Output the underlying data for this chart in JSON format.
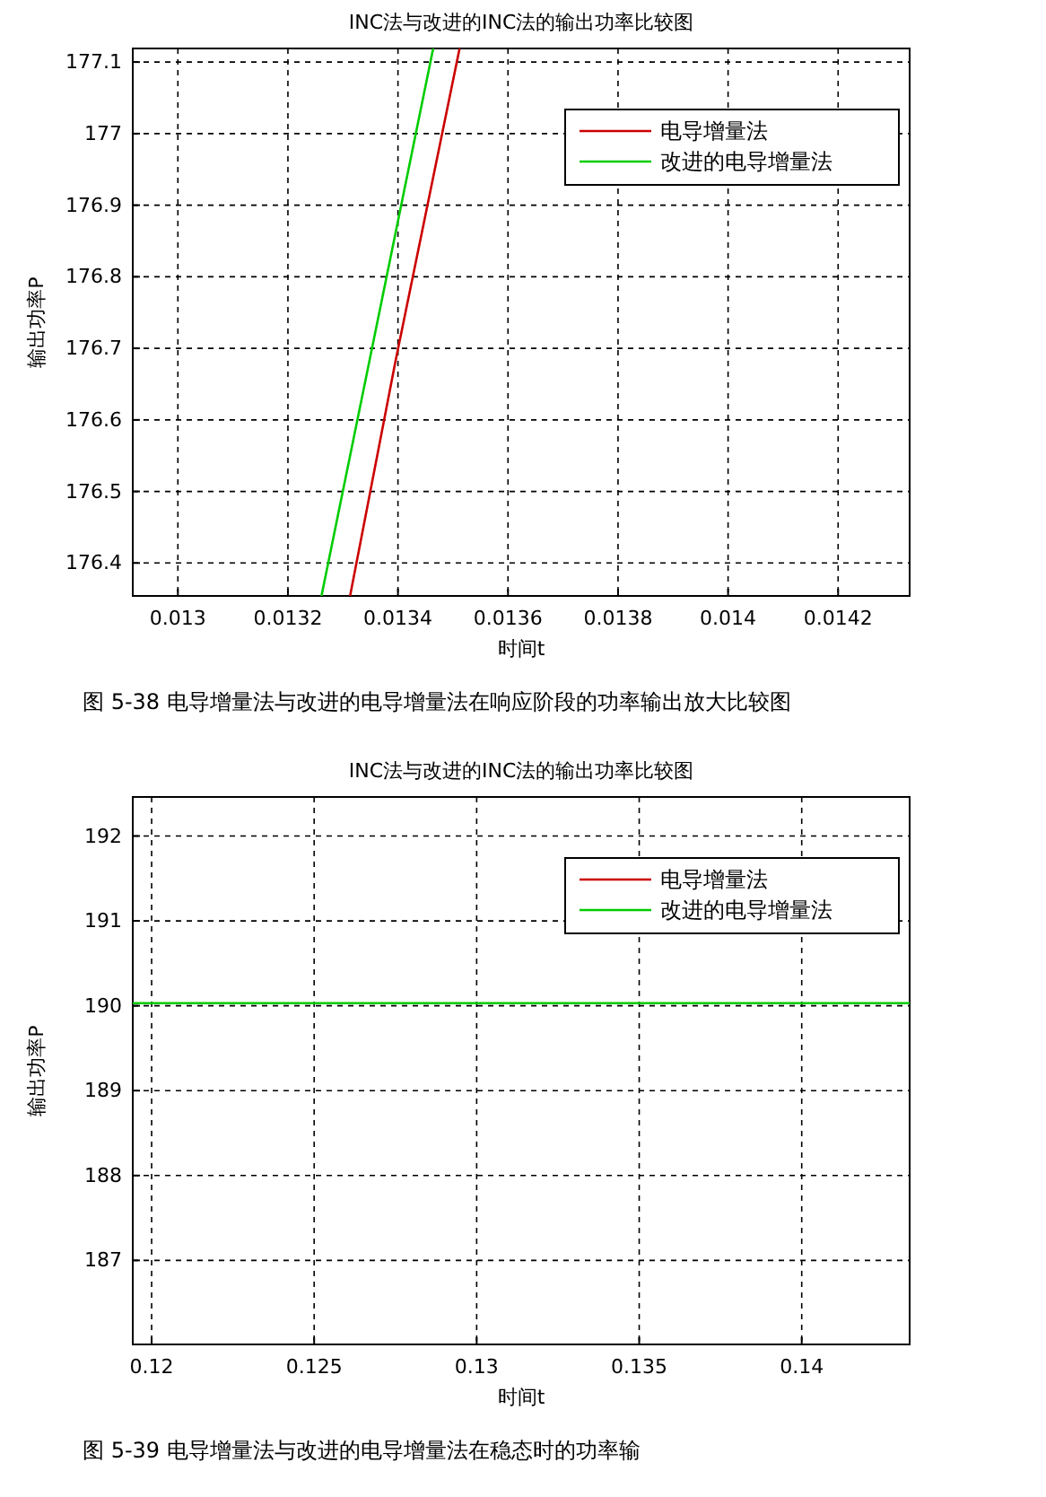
{
  "chart_data": [
    {
      "type": "line",
      "title": "INC法与改进的INC法的输出功率比较图",
      "xlabel": "时间t",
      "ylabel": "输出功率P",
      "series": [
        {
          "name": "电导增量法",
          "color": "#cc0000",
          "x": [
            0.013313,
            0.013395,
            0.013512
          ],
          "values": [
            176.354,
            176.68,
            177.119
          ]
        },
        {
          "name": "改进的电导增量法",
          "color": "#00cc00",
          "x": [
            0.013261,
            0.013464
          ],
          "values": [
            176.354,
            177.119
          ]
        }
      ],
      "xlim": [
        0.012918,
        0.01433
      ],
      "xticks": [
        0.013,
        0.0132,
        0.0134,
        0.0136,
        0.0138,
        0.014,
        0.0142
      ],
      "ylim": [
        176.354,
        177.119
      ],
      "yticks": [
        176.4,
        176.5,
        176.6,
        176.7,
        176.8,
        176.9,
        177,
        177.1
      ],
      "grid": true,
      "legend": "top right",
      "line_style": "solid",
      "marker": "none",
      "annotations": [
        "图 5-38    电导增量法与改进的电导增量法在响应阶段的功率输出放大比较图"
      ]
    },
    {
      "type": "line",
      "title": "INC法与改进的INC法的输出功率比较图",
      "xlabel": "时间t",
      "ylabel": "输出功率P",
      "series": [
        {
          "name": "电导增量法",
          "color": "#cc0000"
        },
        {
          "name": "改进的电导增量法",
          "color": "#00cc00",
          "x": [
            0.11942,
            0.14332
          ],
          "values": [
            190.03,
            190.03
          ]
        }
      ],
      "xlim": [
        0.11942,
        0.14332
      ],
      "xticks": [
        0.12,
        0.125,
        0.13,
        0.135,
        0.14
      ],
      "ylim": [
        186.01,
        192.46
      ],
      "yticks": [
        187,
        188,
        189,
        190,
        191,
        192
      ],
      "grid": true,
      "legend": "top right",
      "line_style": "solid",
      "marker": "none",
      "annotations": [
        "图 5-39    电导增量法与改进的电导增量法在稳态时的功率输"
      ]
    }
  ]
}
